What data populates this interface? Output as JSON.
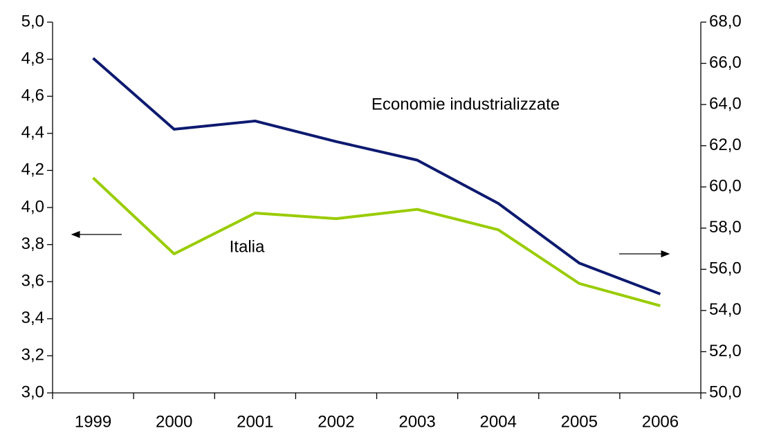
{
  "chart_data": {
    "type": "line",
    "categories": [
      "1999",
      "2000",
      "2001",
      "2002",
      "2003",
      "2004",
      "2005",
      "2006"
    ],
    "series": [
      {
        "name": "Italia",
        "color": "#99cc00",
        "axis": "y",
        "values": [
          4.16,
          3.75,
          3.97,
          3.94,
          3.99,
          3.88,
          3.59,
          3.47
        ]
      },
      {
        "name": "Economie industrializzate",
        "color": "#0d1a70",
        "axis": "y2",
        "values": [
          66.25,
          62.8,
          63.2,
          62.2,
          61.3,
          59.2,
          56.3,
          54.8
        ]
      }
    ],
    "ylim": [
      3.0,
      5.0
    ],
    "yticks": [
      {
        "value": 3.0,
        "label": "3,0"
      },
      {
        "value": 3.2,
        "label": "3,2"
      },
      {
        "value": 3.4,
        "label": "3,4"
      },
      {
        "value": 3.6,
        "label": "3,6"
      },
      {
        "value": 3.8,
        "label": "3,8"
      },
      {
        "value": 4.0,
        "label": "4,0"
      },
      {
        "value": 4.2,
        "label": "4,2"
      },
      {
        "value": 4.4,
        "label": "4,4"
      },
      {
        "value": 4.6,
        "label": "4,6"
      },
      {
        "value": 4.8,
        "label": "4,8"
      },
      {
        "value": 5.0,
        "label": "5,0"
      }
    ],
    "y2lim": [
      50.0,
      68.0
    ],
    "y2ticks": [
      {
        "value": 50,
        "label": "50,0"
      },
      {
        "value": 52,
        "label": "52,0"
      },
      {
        "value": 54,
        "label": "54,0"
      },
      {
        "value": 56,
        "label": "56,0"
      },
      {
        "value": 58,
        "label": "58,0"
      },
      {
        "value": 60,
        "label": "60,0"
      },
      {
        "value": 62,
        "label": "62,0"
      },
      {
        "value": 64,
        "label": "64,0"
      },
      {
        "value": 66,
        "label": "66,0"
      },
      {
        "value": 68,
        "label": "68,0"
      }
    ],
    "grid": false
  }
}
